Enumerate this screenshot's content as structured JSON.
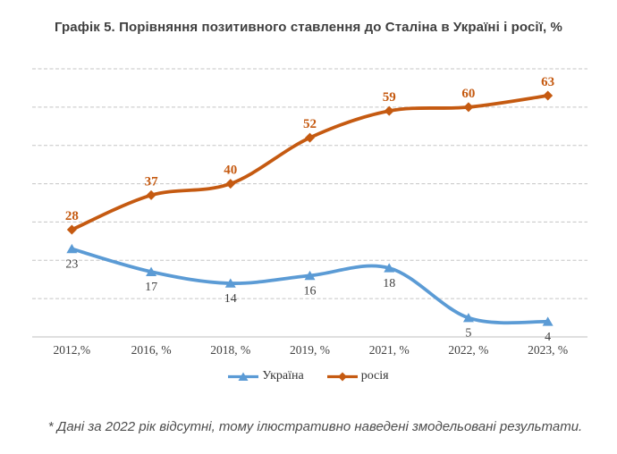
{
  "footnote": "* Дані за 2022 рік відсутні, тому ілюстративно наведені змодельовані результати.",
  "colors": {
    "ukraine_line": "#5B9BD5",
    "russia_line": "#C55A11",
    "gridline": "#C5C5C5",
    "axis_line": "#BFBFBF",
    "axis_label_text": "#3F3F3F",
    "title_text": "#3F3F3F",
    "footnote_text": "#4D4D4D"
  },
  "chart_data": {
    "type": "line",
    "title": "Графік 5. Порівняння позитивного ставлення до Сталіна в Україні і росії, %",
    "categories": [
      "2012,%",
      "2016, %",
      "2018, %",
      "2019, %",
      "2021, %",
      "2022, %",
      "2023, %"
    ],
    "series": [
      {
        "name": "Україна",
        "key": "ukraine",
        "color": "#5B9BD5",
        "marker": "triangle",
        "label_position": "below",
        "label_color": "#3F3F3F",
        "label_bold": false,
        "values": [
          23,
          17,
          14,
          16,
          18,
          5,
          4
        ]
      },
      {
        "name": "росія",
        "key": "russia",
        "color": "#C55A11",
        "marker": "diamond",
        "label_position": "above",
        "label_color": "#C55A11",
        "label_bold": true,
        "values": [
          28,
          37,
          40,
          52,
          59,
          60,
          63
        ]
      }
    ],
    "xlabel": "",
    "ylabel": "",
    "ylim": [
      0,
      70
    ],
    "y_gridline_step": 10,
    "grid": "horizontal-dashed",
    "line_style": "smooth",
    "data_labels": true,
    "legend_position": "bottom"
  }
}
